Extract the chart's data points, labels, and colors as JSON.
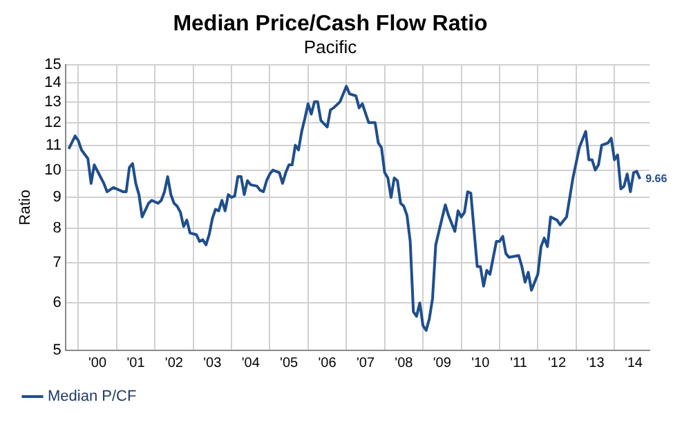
{
  "chart_data": {
    "type": "line",
    "title": "Median Price/Cash Flow Ratio",
    "subtitle": "Pacific",
    "ylabel": "Ratio",
    "x": [
      "1999-10",
      "1999-12",
      "2000-01",
      "2000-02",
      "2000-04",
      "2000-05",
      "2000-06",
      "2000-09",
      "2000-10",
      "2000-12",
      "2001-03",
      "2001-04",
      "2001-05",
      "2001-06",
      "2001-07",
      "2001-08",
      "2001-09",
      "2001-11",
      "2001-12",
      "2002-02",
      "2002-03",
      "2002-04",
      "2002-05",
      "2002-06",
      "2002-07",
      "2002-08",
      "2002-09",
      "2002-10",
      "2002-11",
      "2002-12",
      "2003-02",
      "2003-03",
      "2003-04",
      "2003-05",
      "2003-06",
      "2003-07",
      "2003-08",
      "2003-09",
      "2003-10",
      "2003-11",
      "2003-12",
      "2004-01",
      "2004-02",
      "2004-03",
      "2004-04",
      "2004-05",
      "2004-06",
      "2004-07",
      "2004-09",
      "2004-10",
      "2004-11",
      "2004-12",
      "2005-01",
      "2005-02",
      "2005-04",
      "2005-05",
      "2005-06",
      "2005-07",
      "2005-08",
      "2005-09",
      "2005-10",
      "2005-11",
      "2005-12",
      "2006-01",
      "2006-02",
      "2006-03",
      "2006-04",
      "2006-05",
      "2006-07",
      "2006-08",
      "2006-09",
      "2006-11",
      "2007-01",
      "2007-02",
      "2007-04",
      "2007-05",
      "2007-06",
      "2007-08",
      "2007-10",
      "2007-11",
      "2007-12",
      "2008-01",
      "2008-02",
      "2008-03",
      "2008-04",
      "2008-05",
      "2008-06",
      "2008-07",
      "2008-08",
      "2008-09",
      "2008-10",
      "2008-11",
      "2008-12",
      "2009-01",
      "2009-02",
      "2009-03",
      "2009-04",
      "2009-05",
      "2009-06",
      "2009-08",
      "2009-09",
      "2009-11",
      "2009-12",
      "2010-01",
      "2010-02",
      "2010-03",
      "2010-04",
      "2010-06",
      "2010-07",
      "2010-08",
      "2010-09",
      "2010-10",
      "2010-12",
      "2011-01",
      "2011-02",
      "2011-03",
      "2011-04",
      "2011-07",
      "2011-08",
      "2011-09",
      "2011-10",
      "2011-11",
      "2012-01",
      "2012-02",
      "2012-03",
      "2012-04",
      "2012-05",
      "2012-07",
      "2012-08",
      "2012-10",
      "2012-12",
      "2013-02",
      "2013-04",
      "2013-05",
      "2013-06",
      "2013-07",
      "2013-08",
      "2013-09",
      "2013-11",
      "2013-12",
      "2014-01",
      "2014-02",
      "2014-03",
      "2014-04",
      "2014-05",
      "2014-06",
      "2014-07",
      "2014-08",
      "2014-09"
    ],
    "series": [
      {
        "name": "Median P/CF",
        "color": "#1f4e8c",
        "values": [
          10.85,
          11.4,
          11.2,
          10.8,
          10.45,
          9.5,
          10.2,
          9.5,
          9.2,
          9.35,
          9.2,
          9.2,
          10.1,
          10.25,
          9.5,
          9.1,
          8.35,
          8.8,
          8.9,
          8.8,
          8.9,
          9.2,
          9.75,
          9.1,
          8.8,
          8.7,
          8.5,
          8.05,
          8.25,
          7.85,
          7.8,
          7.6,
          7.65,
          7.5,
          7.8,
          8.3,
          8.6,
          8.55,
          8.9,
          8.55,
          9.1,
          9.0,
          9.05,
          9.75,
          9.75,
          9.1,
          9.6,
          9.45,
          9.4,
          9.25,
          9.2,
          9.6,
          9.85,
          10.0,
          9.9,
          9.5,
          9.9,
          10.2,
          10.2,
          11.0,
          10.8,
          11.6,
          12.2,
          12.9,
          12.4,
          13.0,
          13.0,
          12.1,
          11.8,
          12.6,
          12.7,
          13.0,
          13.8,
          13.4,
          13.3,
          12.7,
          12.9,
          12.0,
          12.0,
          11.1,
          10.9,
          9.9,
          9.7,
          9.0,
          9.7,
          9.6,
          8.8,
          8.7,
          8.4,
          7.6,
          5.8,
          5.7,
          6.0,
          5.5,
          5.4,
          5.65,
          6.1,
          7.5,
          7.9,
          8.75,
          8.4,
          7.9,
          8.55,
          8.35,
          8.5,
          9.2,
          9.15,
          6.9,
          6.9,
          6.4,
          6.8,
          6.7,
          7.6,
          7.6,
          7.75,
          7.25,
          7.15,
          7.2,
          6.9,
          6.5,
          6.75,
          6.3,
          6.7,
          7.45,
          7.7,
          7.45,
          8.35,
          8.25,
          8.1,
          8.35,
          9.7,
          10.9,
          11.6,
          10.4,
          10.4,
          10.0,
          10.2,
          11.0,
          11.1,
          11.3,
          10.4,
          10.6,
          9.3,
          9.4,
          9.85,
          9.2,
          9.9,
          9.95,
          9.66
        ]
      }
    ],
    "annotations": [
      {
        "text": "9.66",
        "x": "2014-09",
        "y": 9.66
      }
    ],
    "log": true,
    "xlim": [
      "1999-09",
      "2014-12"
    ],
    "xticks": [
      {
        "value": "2000",
        "label": null
      },
      {
        "value": "2000-07-01",
        "label": "'00"
      },
      {
        "value": "2001",
        "label": null
      },
      {
        "value": "2001-07-01",
        "label": "'01"
      },
      {
        "value": "2002",
        "label": null
      },
      {
        "value": "2002-07-01",
        "label": "'02"
      },
      {
        "value": "2003",
        "label": null
      },
      {
        "value": "2003-07-01",
        "label": "'03"
      },
      {
        "value": "2004",
        "label": null
      },
      {
        "value": "2004-07-01",
        "label": "'04"
      },
      {
        "value": "2005",
        "label": null
      },
      {
        "value": "2005-07-01",
        "label": "'05"
      },
      {
        "value": "2006",
        "label": null
      },
      {
        "value": "2006-07-01",
        "label": "'06"
      },
      {
        "value": "2007",
        "label": null
      },
      {
        "value": "2007-07-01",
        "label": "'07"
      },
      {
        "value": "2008",
        "label": null
      },
      {
        "value": "2008-07-01",
        "label": "'08"
      },
      {
        "value": "2009",
        "label": null
      },
      {
        "value": "2009-07-01",
        "label": "'09"
      },
      {
        "value": "2010",
        "label": null
      },
      {
        "value": "2010-07-01",
        "label": "'10"
      },
      {
        "value": "2011",
        "label": null
      },
      {
        "value": "2011-07-01",
        "label": "'11"
      },
      {
        "value": "2012",
        "label": null
      },
      {
        "value": "2012-07-01",
        "label": "'12"
      },
      {
        "value": "2013",
        "label": null
      },
      {
        "value": "2013-07-01",
        "label": "'13"
      },
      {
        "value": "2014",
        "label": null
      },
      {
        "value": "2014-07-01",
        "label": "'14"
      }
    ],
    "ylim": [
      5,
      15
    ],
    "yticks": [
      5,
      6,
      7,
      8,
      9,
      10,
      11,
      12,
      13,
      14,
      15
    ],
    "grid": true,
    "legend": "bottom left",
    "marker": "none",
    "line_style": "solid"
  }
}
